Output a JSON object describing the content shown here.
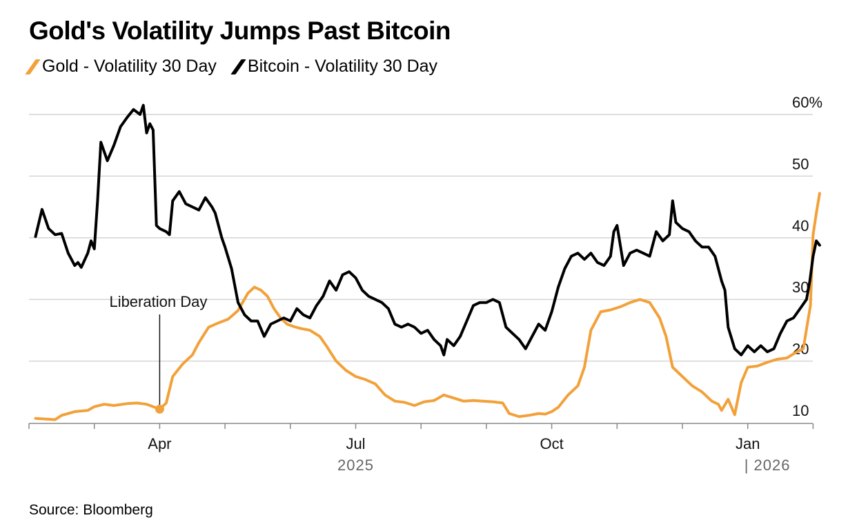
{
  "chart_data": {
    "type": "line",
    "title": "Gold's Volatility Jumps Past Bitcoin",
    "source": "Source: Bloomberg",
    "ylim": [
      10,
      60
    ],
    "y_ticks": [
      {
        "value": 60,
        "label": "60%"
      },
      {
        "value": 50,
        "label": "50"
      },
      {
        "value": 40,
        "label": "40"
      },
      {
        "value": 30,
        "label": "30"
      },
      {
        "value": 20,
        "label": "20"
      },
      {
        "value": 10,
        "label": "10"
      }
    ],
    "x_domain": [
      0,
      12.3
    ],
    "x_ticks": [
      {
        "value": 0,
        "label": ""
      },
      {
        "value": 1,
        "label": ""
      },
      {
        "value": 2,
        "label": "Apr"
      },
      {
        "value": 3,
        "label": ""
      },
      {
        "value": 4,
        "label": ""
      },
      {
        "value": 5,
        "label": "Jul"
      },
      {
        "value": 6,
        "label": ""
      },
      {
        "value": 7,
        "label": ""
      },
      {
        "value": 8,
        "label": "Oct"
      },
      {
        "value": 9,
        "label": ""
      },
      {
        "value": 10,
        "label": ""
      },
      {
        "value": 11,
        "label": "Jan"
      },
      {
        "value": 12,
        "label": ""
      }
    ],
    "year_labels": [
      {
        "value": 5,
        "label": "2025"
      },
      {
        "value": 11.3,
        "label": "| 2026"
      }
    ],
    "annotation": {
      "label": "Liberation Day",
      "x": 2.0,
      "y": 12.2
    },
    "series": [
      {
        "name": "Gold - Volatility 30 Day",
        "color": "#F2A13A",
        "points": [
          [
            0.1,
            10.7
          ],
          [
            0.25,
            10.6
          ],
          [
            0.4,
            10.5
          ],
          [
            0.5,
            11.2
          ],
          [
            0.7,
            11.8
          ],
          [
            0.9,
            12.0
          ],
          [
            1.0,
            12.6
          ],
          [
            1.15,
            13.0
          ],
          [
            1.3,
            12.8
          ],
          [
            1.5,
            13.1
          ],
          [
            1.65,
            13.2
          ],
          [
            1.8,
            13.0
          ],
          [
            1.95,
            12.4
          ],
          [
            2.0,
            12.2
          ],
          [
            2.1,
            13.2
          ],
          [
            2.2,
            17.5
          ],
          [
            2.35,
            19.5
          ],
          [
            2.5,
            21.0
          ],
          [
            2.6,
            23.0
          ],
          [
            2.75,
            25.5
          ],
          [
            2.9,
            26.2
          ],
          [
            3.05,
            26.8
          ],
          [
            3.2,
            28.2
          ],
          [
            3.35,
            31.0
          ],
          [
            3.45,
            32.0
          ],
          [
            3.55,
            31.5
          ],
          [
            3.65,
            30.5
          ],
          [
            3.75,
            28.5
          ],
          [
            3.85,
            27.0
          ],
          [
            3.95,
            26.0
          ],
          [
            4.05,
            25.6
          ],
          [
            4.15,
            25.3
          ],
          [
            4.3,
            25.0
          ],
          [
            4.45,
            24.0
          ],
          [
            4.55,
            22.5
          ],
          [
            4.7,
            20.0
          ],
          [
            4.85,
            18.5
          ],
          [
            5.0,
            17.5
          ],
          [
            5.15,
            17.0
          ],
          [
            5.3,
            16.3
          ],
          [
            5.45,
            14.5
          ],
          [
            5.6,
            13.5
          ],
          [
            5.75,
            13.3
          ],
          [
            5.9,
            12.8
          ],
          [
            6.05,
            13.4
          ],
          [
            6.2,
            13.6
          ],
          [
            6.35,
            14.5
          ],
          [
            6.5,
            14.0
          ],
          [
            6.65,
            13.5
          ],
          [
            6.8,
            13.6
          ],
          [
            6.95,
            13.5
          ],
          [
            7.1,
            13.4
          ],
          [
            7.25,
            13.2
          ],
          [
            7.35,
            11.5
          ],
          [
            7.5,
            11.0
          ],
          [
            7.65,
            11.2
          ],
          [
            7.8,
            11.5
          ],
          [
            7.9,
            11.4
          ],
          [
            8.0,
            11.8
          ],
          [
            8.1,
            12.5
          ],
          [
            8.25,
            14.5
          ],
          [
            8.4,
            16.0
          ],
          [
            8.5,
            19.0
          ],
          [
            8.6,
            25.0
          ],
          [
            8.75,
            28.0
          ],
          [
            8.9,
            28.3
          ],
          [
            9.05,
            28.8
          ],
          [
            9.2,
            29.5
          ],
          [
            9.35,
            30.0
          ],
          [
            9.5,
            29.5
          ],
          [
            9.65,
            27.0
          ],
          [
            9.75,
            24.0
          ],
          [
            9.85,
            19.0
          ],
          [
            10.0,
            17.5
          ],
          [
            10.15,
            16.0
          ],
          [
            10.3,
            15.0
          ],
          [
            10.45,
            13.5
          ],
          [
            10.55,
            13.0
          ],
          [
            10.6,
            12.0
          ],
          [
            10.7,
            13.8
          ],
          [
            10.8,
            11.3
          ],
          [
            10.9,
            16.5
          ],
          [
            11.0,
            19.0
          ],
          [
            11.15,
            19.2
          ],
          [
            11.3,
            19.8
          ],
          [
            11.45,
            20.3
          ],
          [
            11.6,
            20.5
          ],
          [
            11.75,
            21.5
          ],
          [
            11.85,
            22.0
          ],
          [
            11.92,
            26.5
          ],
          [
            11.96,
            29.0
          ],
          [
            12.0,
            40.5
          ],
          [
            12.05,
            44.0
          ],
          [
            12.1,
            47.2
          ]
        ]
      },
      {
        "name": "Bitcoin - Volatility 30 Day",
        "color": "#000000",
        "points": [
          [
            0.1,
            40.2
          ],
          [
            0.2,
            44.6
          ],
          [
            0.3,
            41.5
          ],
          [
            0.4,
            40.5
          ],
          [
            0.5,
            40.7
          ],
          [
            0.6,
            37.5
          ],
          [
            0.7,
            35.5
          ],
          [
            0.75,
            36.0
          ],
          [
            0.8,
            35.2
          ],
          [
            0.9,
            37.5
          ],
          [
            0.95,
            39.5
          ],
          [
            1.0,
            38.2
          ],
          [
            1.05,
            46.0
          ],
          [
            1.1,
            55.5
          ],
          [
            1.2,
            52.5
          ],
          [
            1.3,
            55.0
          ],
          [
            1.4,
            58.0
          ],
          [
            1.5,
            59.5
          ],
          [
            1.6,
            60.8
          ],
          [
            1.7,
            60.0
          ],
          [
            1.75,
            61.5
          ],
          [
            1.8,
            57.0
          ],
          [
            1.85,
            58.5
          ],
          [
            1.9,
            57.5
          ],
          [
            1.95,
            42.0
          ],
          [
            2.0,
            41.5
          ],
          [
            2.1,
            41.0
          ],
          [
            2.15,
            40.5
          ],
          [
            2.2,
            46.0
          ],
          [
            2.3,
            47.5
          ],
          [
            2.4,
            45.5
          ],
          [
            2.5,
            45.0
          ],
          [
            2.6,
            44.5
          ],
          [
            2.7,
            46.5
          ],
          [
            2.8,
            45.0
          ],
          [
            2.85,
            44.0
          ],
          [
            2.95,
            40.0
          ],
          [
            3.0,
            38.5
          ],
          [
            3.1,
            35.0
          ],
          [
            3.2,
            29.5
          ],
          [
            3.3,
            27.5
          ],
          [
            3.4,
            26.5
          ],
          [
            3.5,
            26.5
          ],
          [
            3.6,
            24.0
          ],
          [
            3.7,
            26.0
          ],
          [
            3.8,
            26.5
          ],
          [
            3.9,
            27.0
          ],
          [
            4.0,
            26.5
          ],
          [
            4.1,
            28.5
          ],
          [
            4.2,
            27.5
          ],
          [
            4.3,
            27.0
          ],
          [
            4.4,
            29.0
          ],
          [
            4.5,
            30.5
          ],
          [
            4.6,
            33.0
          ],
          [
            4.7,
            31.5
          ],
          [
            4.8,
            34.0
          ],
          [
            4.9,
            34.5
          ],
          [
            5.0,
            33.5
          ],
          [
            5.1,
            31.5
          ],
          [
            5.2,
            30.5
          ],
          [
            5.3,
            30.0
          ],
          [
            5.4,
            29.5
          ],
          [
            5.5,
            28.5
          ],
          [
            5.6,
            26.0
          ],
          [
            5.7,
            25.5
          ],
          [
            5.8,
            26.0
          ],
          [
            5.9,
            25.5
          ],
          [
            6.0,
            24.5
          ],
          [
            6.1,
            25.0
          ],
          [
            6.2,
            23.5
          ],
          [
            6.3,
            22.5
          ],
          [
            6.35,
            21.0
          ],
          [
            6.4,
            23.5
          ],
          [
            6.5,
            22.5
          ],
          [
            6.6,
            24.0
          ],
          [
            6.7,
            26.5
          ],
          [
            6.8,
            29.0
          ],
          [
            6.9,
            29.5
          ],
          [
            7.0,
            29.5
          ],
          [
            7.1,
            30.0
          ],
          [
            7.2,
            29.5
          ],
          [
            7.3,
            25.5
          ],
          [
            7.4,
            24.5
          ],
          [
            7.5,
            23.5
          ],
          [
            7.6,
            22.0
          ],
          [
            7.7,
            24.0
          ],
          [
            7.8,
            26.0
          ],
          [
            7.9,
            25.0
          ],
          [
            8.0,
            28.0
          ],
          [
            8.1,
            32.0
          ],
          [
            8.2,
            35.0
          ],
          [
            8.3,
            37.0
          ],
          [
            8.4,
            37.5
          ],
          [
            8.5,
            36.5
          ],
          [
            8.6,
            37.5
          ],
          [
            8.7,
            36.0
          ],
          [
            8.8,
            35.5
          ],
          [
            8.9,
            37.0
          ],
          [
            8.95,
            41.0
          ],
          [
            9.0,
            42.0
          ],
          [
            9.1,
            35.5
          ],
          [
            9.2,
            37.5
          ],
          [
            9.3,
            38.0
          ],
          [
            9.4,
            37.5
          ],
          [
            9.5,
            37.0
          ],
          [
            9.6,
            41.0
          ],
          [
            9.7,
            39.5
          ],
          [
            9.8,
            40.5
          ],
          [
            9.85,
            46.0
          ],
          [
            9.9,
            42.5
          ],
          [
            10.0,
            41.5
          ],
          [
            10.1,
            41.0
          ],
          [
            10.2,
            39.5
          ],
          [
            10.3,
            38.5
          ],
          [
            10.4,
            38.5
          ],
          [
            10.5,
            37.0
          ],
          [
            10.6,
            33.0
          ],
          [
            10.65,
            31.5
          ],
          [
            10.7,
            25.5
          ],
          [
            10.8,
            22.0
          ],
          [
            10.9,
            21.0
          ],
          [
            11.0,
            22.5
          ],
          [
            11.1,
            21.5
          ],
          [
            11.2,
            22.5
          ],
          [
            11.3,
            21.5
          ],
          [
            11.4,
            22.0
          ],
          [
            11.5,
            24.5
          ],
          [
            11.6,
            26.5
          ],
          [
            11.7,
            27.0
          ],
          [
            11.8,
            28.5
          ],
          [
            11.9,
            30.0
          ],
          [
            11.95,
            33.0
          ],
          [
            12.0,
            37.0
          ],
          [
            12.05,
            39.5
          ],
          [
            12.1,
            38.8
          ]
        ]
      }
    ]
  }
}
